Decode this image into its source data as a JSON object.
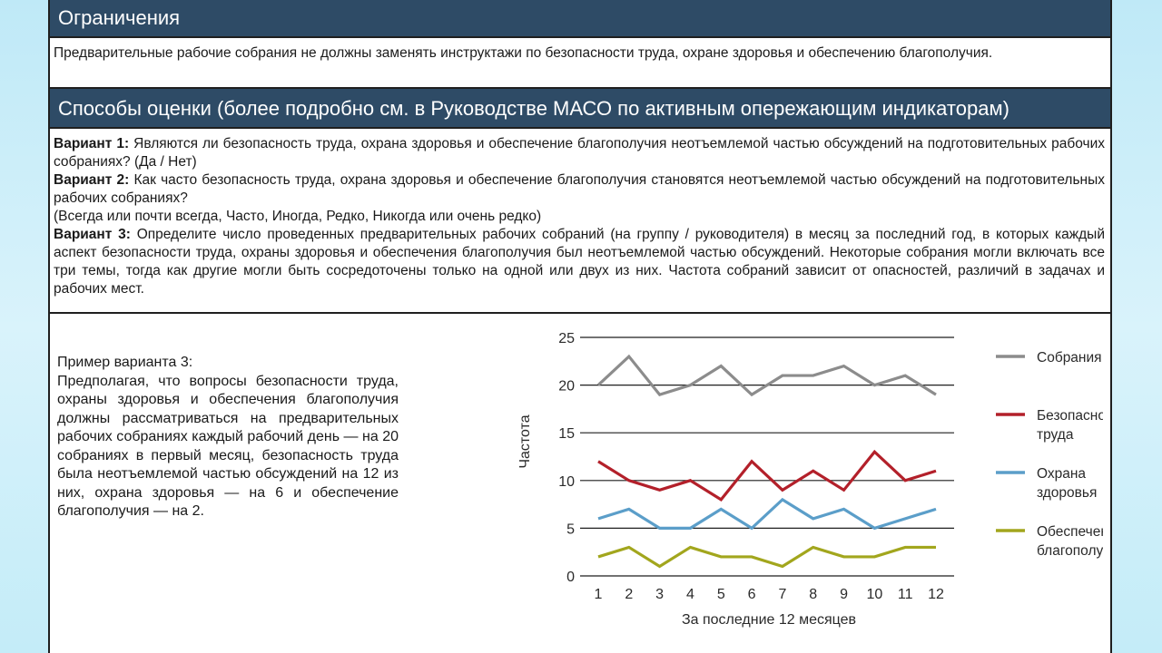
{
  "limits": {
    "title": "Ограничения",
    "text": "Предварительные рабочие собрания не должны заменять инструктажи по безопасности труда, охране здоровья и обеспечению благополучия."
  },
  "methods": {
    "title": "Способы оценки (более подробно см. в Руководстве МАСО по активным опережающим индикаторам)",
    "v1_label": "Вариант 1:",
    "v1_text": " Являются ли безопасность труда, охрана здоровья и обеспечение благополучия неотъемлемой частью обсуждений на подготовительных рабочих собраниях? (Да / Нет)",
    "v2_label": "Вариант 2:",
    "v2_text": " Как часто безопасность труда, охрана здоровья и обеспечение благополучия становятся неотъемлемой частью обсуждений на подготовительных рабочих собраниях?",
    "v2_options": "(Всегда или почти всегда, Часто, Иногда, Редко, Никогда или очень редко)",
    "v3_label": "Вариант 3:",
    "v3_text": " Определите число проведенных предварительных рабочих собраний (на группу / руководителя) в месяц за последний год, в которых каждый аспект безопасности труда, охраны здоровья и обеспечения благополучия был неотъемлемой частью обсуждений. Некоторые собрания могли включать все три темы, тогда как другие могли быть сосредоточены только на одной или двух из них. Частота собраний зависит от опасностей, различий в задачах и рабочих мест."
  },
  "example": {
    "title": "Пример варианта 3:",
    "text": "Предполагая, что вопросы безопасности труда, охраны здоровья и обеспечения благополучия должны рассматриваться на предварительных рабочих собраниях каждый рабочий день — на 20 собраниях в первый месяц, безопасность труда была неотъемлемой частью обсуждений на 12 из них, охрана здоровья — на 6 и обеспечение благополучия — на 2."
  },
  "chart_data": {
    "type": "line",
    "x": [
      1,
      2,
      3,
      4,
      5,
      6,
      7,
      8,
      9,
      10,
      11,
      12
    ],
    "series": [
      {
        "name": "Собрания",
        "name_lines": [
          "Собрания"
        ],
        "color": "#8c8c8c",
        "values": [
          20,
          23,
          19,
          20,
          22,
          19,
          21,
          21,
          22,
          20,
          21,
          19
        ]
      },
      {
        "name": "Безопасность труда",
        "name_lines": [
          "Безопасность",
          "труда"
        ],
        "color": "#b3202a",
        "values": [
          12,
          10,
          9,
          10,
          8,
          12,
          9,
          11,
          9,
          13,
          10,
          11
        ]
      },
      {
        "name": "Охрана здоровья",
        "name_lines": [
          "Охрана",
          "здоровья"
        ],
        "color": "#5b9ec9",
        "values": [
          6,
          7,
          5,
          5,
          7,
          5,
          8,
          6,
          7,
          5,
          6,
          7
        ]
      },
      {
        "name": "Обеспечение благополучия",
        "name_lines": [
          "Обеспечение",
          "благополучия"
        ],
        "color": "#a2a61d",
        "values": [
          2,
          3,
          1,
          3,
          2,
          2,
          1,
          3,
          2,
          2,
          3,
          3
        ]
      }
    ],
    "title": "",
    "xlabel": "За последние 12 месяцев",
    "ylabel": "Частота",
    "ylim": [
      0,
      25
    ],
    "yticks": [
      0,
      5,
      10,
      15,
      20,
      25
    ],
    "grid": true,
    "legend": "right"
  }
}
